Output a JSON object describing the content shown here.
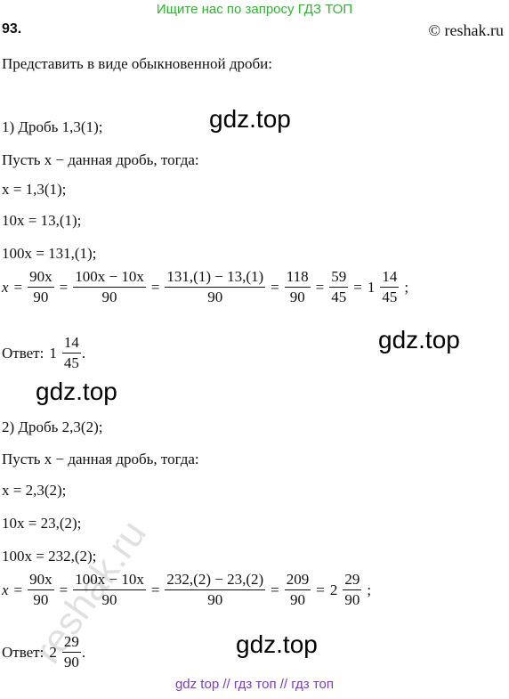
{
  "header": {
    "banner": "Ищите нас по запросу ГДЗ ТОП",
    "number": "93.",
    "copyright": "© reshak.ru"
  },
  "task": "Представить в виде обыкновенной дроби:",
  "sep": "=",
  "parts": [
    {
      "heading": "1) Дробь 1,3(1);",
      "intro": "Пусть x − данная дробь, тогда:",
      "lines": [
        "x = 1,3(1);",
        "10x = 13,(1);",
        "100x = 131,(1);"
      ],
      "chain": {
        "lhs": "x",
        "terms": [
          {
            "num": "90x",
            "den": "90"
          },
          {
            "num": "100x − 10x",
            "den": "90"
          },
          {
            "num": "131,(1) − 13,(1)",
            "den": "90"
          },
          {
            "num": "118",
            "den": "90"
          },
          {
            "num": "59",
            "den": "45"
          },
          {
            "whole": "1",
            "num": "14",
            "den": "45"
          }
        ],
        "end": ";"
      },
      "answer": {
        "label": "Ответ:",
        "whole": "1",
        "num": "14",
        "den": "45",
        "end": "."
      }
    },
    {
      "heading": "2) Дробь 2,3(2);",
      "intro": "Пусть x − данная дробь, тогда:",
      "lines": [
        "x = 2,3(2);",
        "10x = 23,(2);",
        "100x = 232,(2);"
      ],
      "chain": {
        "lhs": "x",
        "terms": [
          {
            "num": "90x",
            "den": "90"
          },
          {
            "num": "100x − 10x",
            "den": "90"
          },
          {
            "num": "232,(2) − 23,(2)",
            "den": "90"
          },
          {
            "num": "209",
            "den": "90"
          },
          {
            "whole": "2",
            "num": "29",
            "den": "90"
          }
        ],
        "end": ";"
      },
      "answer": {
        "label": "Ответ:",
        "whole": "2",
        "num": "29",
        "den": "90",
        "end": "."
      }
    }
  ],
  "watermarks": [
    "gdz.top",
    "gdz.top",
    "gdz.top",
    "gdz.top",
    "reshak.ru"
  ],
  "footer": "gdz top // гдз топ // гдз топ"
}
